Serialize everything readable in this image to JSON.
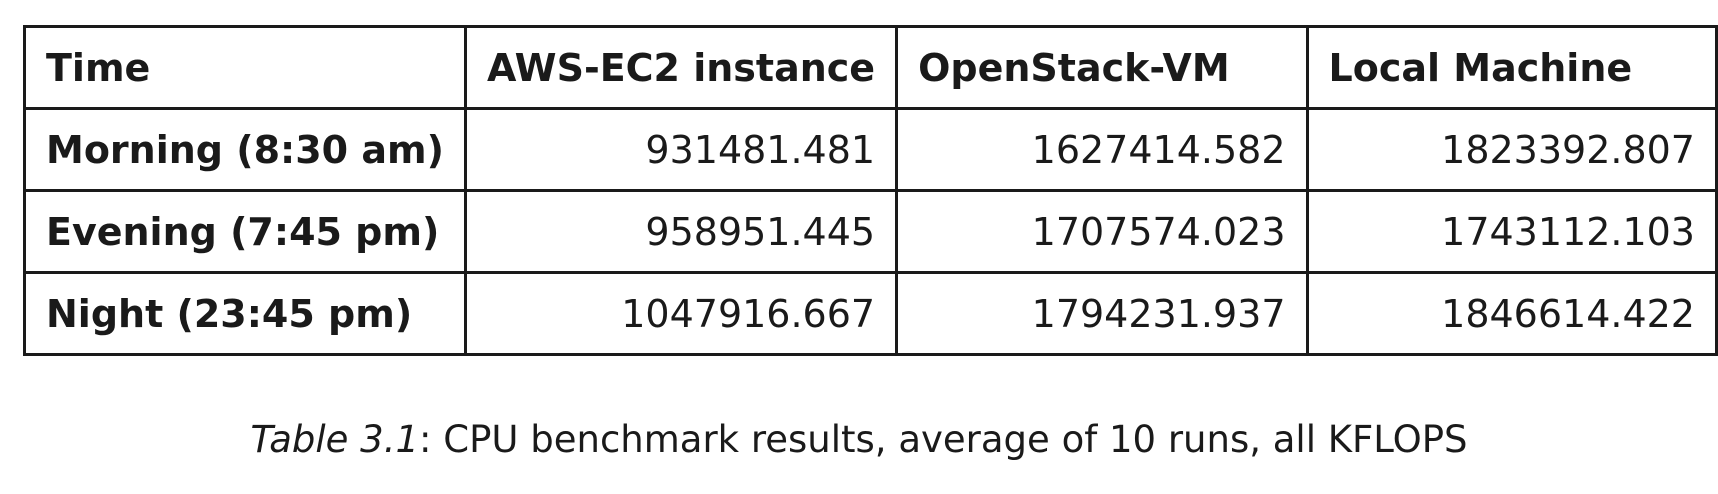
{
  "table": {
    "headers": [
      "Time",
      "AWS-EC2 instance",
      "OpenStack-VM",
      "Local Machine"
    ],
    "rows": [
      {
        "label": "Morning (8:30 am)",
        "values": [
          "931481.481",
          "1627414.582",
          "1823392.807"
        ]
      },
      {
        "label": "Evening (7:45 pm)",
        "values": [
          "958951.445",
          "1707574.023",
          "1743112.103"
        ]
      },
      {
        "label": "Night (23:45 pm)",
        "values": [
          "1047916.667",
          "1794231.937",
          "1846614.422"
        ]
      }
    ]
  },
  "caption": {
    "label": "Table 3.1",
    "text": ": CPU benchmark results, average of 10 runs, all KFLOPS"
  }
}
